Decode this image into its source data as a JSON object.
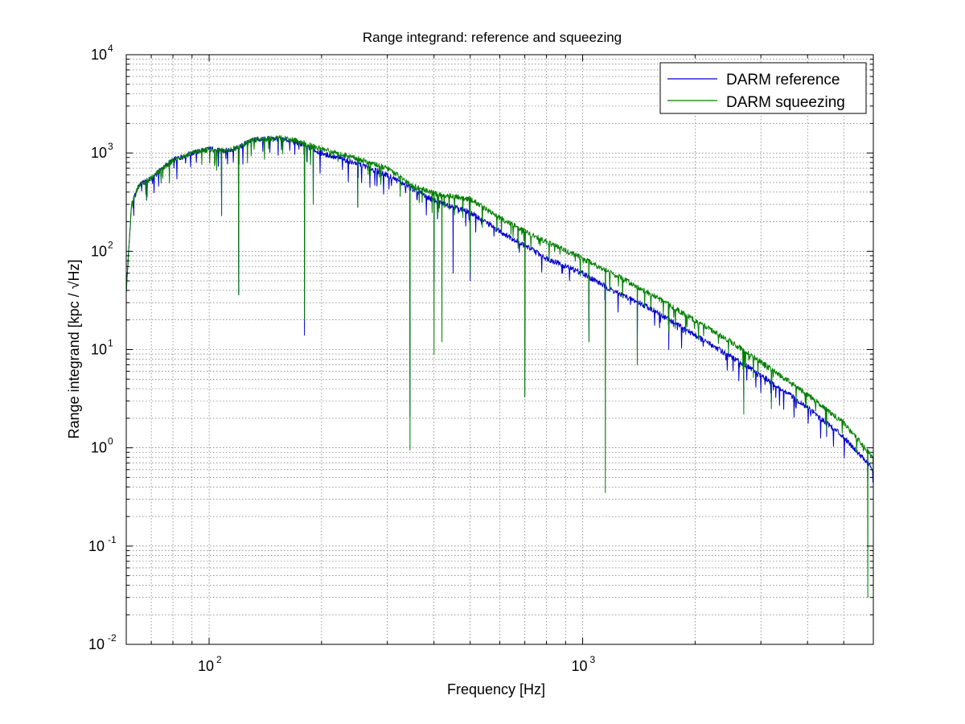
{
  "chart_data": {
    "type": "line",
    "title": "Range integrand: reference and squeezing",
    "xlabel": "Frequency [Hz]",
    "ylabel": "Range integrand [kpc / √Hz]",
    "xscale": "log",
    "yscale": "log",
    "xlim": [
      60,
      6000
    ],
    "ylim": [
      0.01,
      10000
    ],
    "grid": true,
    "legend_position": "top-right",
    "x_tick_labels": [
      {
        "value": 100,
        "base": "10",
        "exp": "2"
      },
      {
        "value": 1000,
        "base": "10",
        "exp": "3"
      }
    ],
    "y_tick_labels": [
      {
        "value": 0.01,
        "base": "10",
        "exp": "-2"
      },
      {
        "value": 0.1,
        "base": "10",
        "exp": "-1"
      },
      {
        "value": 1,
        "base": "10",
        "exp": "0"
      },
      {
        "value": 10,
        "base": "10",
        "exp": "1"
      },
      {
        "value": 100,
        "base": "10",
        "exp": "2"
      },
      {
        "value": 1000,
        "base": "10",
        "exp": "3"
      },
      {
        "value": 10000,
        "base": "10",
        "exp": "4"
      }
    ],
    "series": [
      {
        "name": "DARM reference",
        "color": "#0000cc",
        "points": [
          [
            60,
            40
          ],
          [
            62,
            300
          ],
          [
            65,
            480
          ],
          [
            70,
            550
          ],
          [
            75,
            700
          ],
          [
            80,
            850
          ],
          [
            90,
            1000
          ],
          [
            100,
            1100
          ],
          [
            110,
            1050
          ],
          [
            120,
            1150
          ],
          [
            130,
            1350
          ],
          [
            140,
            1400
          ],
          [
            150,
            1400
          ],
          [
            160,
            1380
          ],
          [
            175,
            1250
          ],
          [
            200,
            1000
          ],
          [
            250,
            780
          ],
          [
            300,
            600
          ],
          [
            350,
            430
          ],
          [
            400,
            330
          ],
          [
            500,
            250
          ],
          [
            600,
            160
          ],
          [
            700,
            115
          ],
          [
            800,
            85
          ],
          [
            1000,
            60
          ],
          [
            1200,
            40
          ],
          [
            1500,
            27
          ],
          [
            2000,
            14
          ],
          [
            2500,
            8.5
          ],
          [
            3000,
            5.5
          ],
          [
            4000,
            2.6
          ],
          [
            5000,
            1.3
          ],
          [
            6000,
            0.6
          ]
        ],
        "dips": [
          [
            68,
            330
          ],
          [
            108,
            230
          ],
          [
            120,
            36
          ],
          [
            180,
            14
          ],
          [
            190,
            300
          ],
          [
            250,
            280
          ],
          [
            345,
            2.1
          ],
          [
            400,
            50
          ],
          [
            450,
            60
          ],
          [
            500,
            50
          ],
          [
            700,
            3.3
          ],
          [
            880,
            60
          ],
          [
            1040,
            12
          ],
          [
            1150,
            20
          ],
          [
            1400,
            10
          ],
          [
            1700,
            10
          ],
          [
            2700,
            3.2
          ],
          [
            3200,
            3.0
          ],
          [
            4500,
            1.3
          ],
          [
            5800,
            0.45
          ]
        ]
      },
      {
        "name": "DARM squeezing",
        "color": "#007f00",
        "points": [
          [
            60,
            40
          ],
          [
            62,
            300
          ],
          [
            65,
            480
          ],
          [
            70,
            550
          ],
          [
            75,
            700
          ],
          [
            80,
            850
          ],
          [
            90,
            1000
          ],
          [
            100,
            1100
          ],
          [
            110,
            1050
          ],
          [
            120,
            1150
          ],
          [
            130,
            1350
          ],
          [
            140,
            1400
          ],
          [
            150,
            1420
          ],
          [
            160,
            1420
          ],
          [
            175,
            1300
          ],
          [
            200,
            1100
          ],
          [
            250,
            880
          ],
          [
            300,
            700
          ],
          [
            350,
            470
          ],
          [
            400,
            390
          ],
          [
            500,
            340
          ],
          [
            600,
            220
          ],
          [
            700,
            160
          ],
          [
            800,
            125
          ],
          [
            1000,
            85
          ],
          [
            1200,
            60
          ],
          [
            1500,
            38
          ],
          [
            2000,
            20
          ],
          [
            2500,
            12
          ],
          [
            3000,
            7.5
          ],
          [
            4000,
            3.5
          ],
          [
            5000,
            1.8
          ],
          [
            6000,
            0.8
          ]
        ],
        "dips": [
          [
            68,
            330
          ],
          [
            108,
            230
          ],
          [
            120,
            36
          ],
          [
            180,
            20
          ],
          [
            190,
            300
          ],
          [
            250,
            280
          ],
          [
            345,
            0.95
          ],
          [
            400,
            9
          ],
          [
            420,
            12
          ],
          [
            500,
            60
          ],
          [
            700,
            3.3
          ],
          [
            1040,
            12
          ],
          [
            1150,
            0.35
          ],
          [
            1400,
            7
          ],
          [
            1700,
            15
          ],
          [
            2700,
            2.2
          ],
          [
            3200,
            2.5
          ],
          [
            4500,
            1.5
          ],
          [
            5800,
            0.03
          ]
        ]
      }
    ]
  }
}
